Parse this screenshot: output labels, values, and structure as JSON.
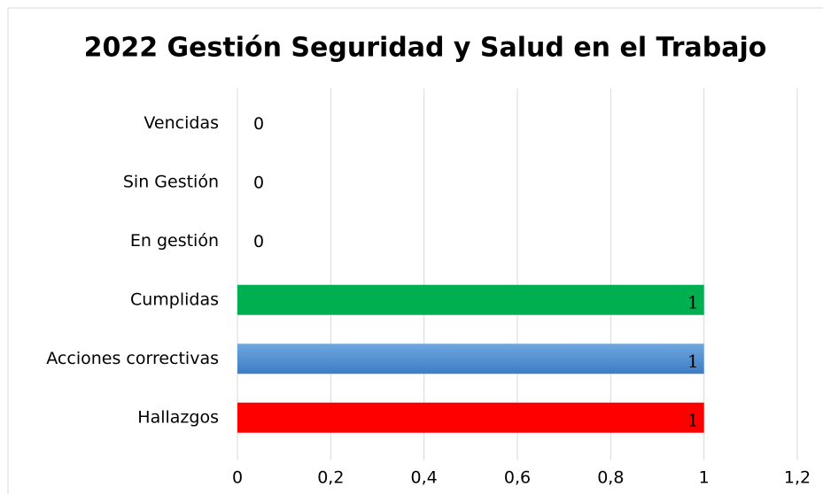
{
  "chart_data": {
    "type": "bar",
    "orientation": "horizontal",
    "title": "2022 Gestión Seguridad y Salud en el Trabajo",
    "categories": [
      "Vencidas",
      "Sin Gestión",
      "En gestión",
      "Cumplidas",
      "Acciones correctivas",
      "Hallazgos"
    ],
    "values": [
      0,
      0,
      0,
      1,
      1,
      1
    ],
    "colors": [
      "#00b050",
      "#00b050",
      "#00b050",
      "#00b050",
      "#5b9bd5",
      "#ff0000"
    ],
    "xlim": [
      0,
      1.2
    ],
    "xticks": [
      0,
      {
        "value": 0.2,
        "label": "0,2"
      },
      {
        "value": 0.4,
        "label": "0,4"
      },
      {
        "value": 0.6,
        "label": "0,6"
      },
      {
        "value": 0.8,
        "label": "0,8"
      },
      1,
      {
        "value": 1.2,
        "label": "1,2"
      }
    ],
    "grid": true
  }
}
